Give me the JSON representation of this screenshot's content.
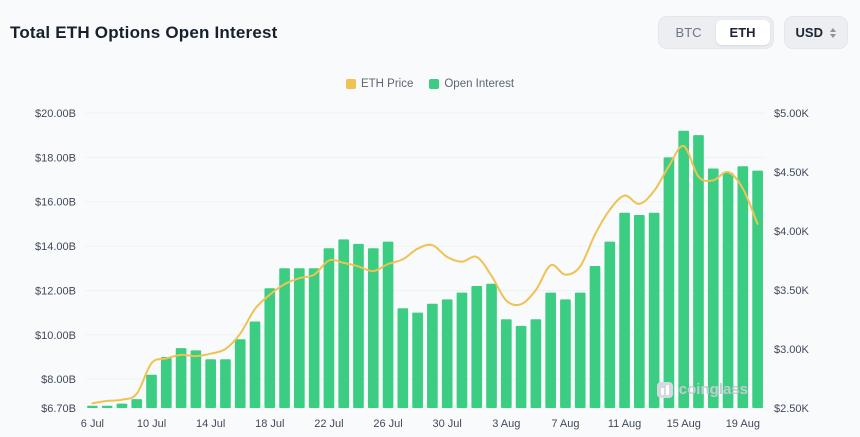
{
  "header": {
    "title": "Total ETH Options Open Interest",
    "asset_toggle": {
      "options": [
        "BTC",
        "ETH"
      ],
      "selected": "ETH"
    },
    "currency_selector": {
      "value": "USD"
    }
  },
  "legend": [
    {
      "label": "ETH Price",
      "color": "#EFC254"
    },
    {
      "label": "Open Interest",
      "color": "#3BCD81"
    }
  ],
  "watermark": "coinglass",
  "chart_data": {
    "type": "bar",
    "title": "Total ETH Options Open Interest",
    "categories": [
      "6 Jul",
      "7 Jul",
      "8 Jul",
      "9 Jul",
      "10 Jul",
      "11 Jul",
      "12 Jul",
      "13 Jul",
      "14 Jul",
      "15 Jul",
      "16 Jul",
      "17 Jul",
      "18 Jul",
      "19 Jul",
      "20 Jul",
      "21 Jul",
      "22 Jul",
      "23 Jul",
      "24 Jul",
      "25 Jul",
      "26 Jul",
      "27 Jul",
      "28 Jul",
      "29 Jul",
      "30 Jul",
      "31 Jul",
      "1 Aug",
      "2 Aug",
      "3 Aug",
      "4 Aug",
      "5 Aug",
      "6 Aug",
      "7 Aug",
      "8 Aug",
      "9 Aug",
      "10 Aug",
      "11 Aug",
      "12 Aug",
      "13 Aug",
      "14 Aug",
      "15 Aug",
      "16 Aug",
      "17 Aug",
      "18 Aug",
      "19 Aug",
      "20 Aug"
    ],
    "series": [
      {
        "name": "Open Interest",
        "type": "bar",
        "axis": "left",
        "unit": "USD billions",
        "color": "#3BCD81",
        "values": [
          6.8,
          6.8,
          6.9,
          7.1,
          8.2,
          9.0,
          9.4,
          9.3,
          8.9,
          8.9,
          9.8,
          10.6,
          12.1,
          13.0,
          13.0,
          13.0,
          13.9,
          14.3,
          14.1,
          13.9,
          14.2,
          11.2,
          11.0,
          11.4,
          11.6,
          11.9,
          12.2,
          12.3,
          10.7,
          10.4,
          10.7,
          11.9,
          11.6,
          11.9,
          13.1,
          14.2,
          15.5,
          15.4,
          15.5,
          18.0,
          19.2,
          19.0,
          17.5,
          17.3,
          17.6,
          17.4
        ]
      },
      {
        "name": "ETH Price",
        "type": "line",
        "axis": "right",
        "unit": "USD thousands",
        "color": "#EFC254",
        "values": [
          2.54,
          2.56,
          2.57,
          2.62,
          2.88,
          2.92,
          2.95,
          2.94,
          2.96,
          3.0,
          3.13,
          3.34,
          3.46,
          3.55,
          3.6,
          3.63,
          3.75,
          3.73,
          3.7,
          3.66,
          3.72,
          3.76,
          3.85,
          3.88,
          3.78,
          3.74,
          3.78,
          3.62,
          3.41,
          3.38,
          3.5,
          3.71,
          3.63,
          3.7,
          3.97,
          4.18,
          4.3,
          4.23,
          4.34,
          4.55,
          4.72,
          4.46,
          4.43,
          4.5,
          4.36,
          4.06
        ]
      }
    ],
    "left_axis": {
      "range": [
        6.7,
        20.0
      ],
      "ticks": [
        6.7,
        8,
        10,
        12,
        14,
        16,
        18,
        20
      ],
      "labels": [
        "$6.70B",
        "$8.00B",
        "$10.00B",
        "$12.00B",
        "$14.00B",
        "$16.00B",
        "$18.00B",
        "$20.00B"
      ]
    },
    "right_axis": {
      "range": [
        2.5,
        5.0
      ],
      "ticks": [
        2.5,
        3.0,
        3.5,
        4.0,
        4.5,
        5.0
      ],
      "labels": [
        "$2.50K",
        "$3.00K",
        "$3.50K",
        "$4.00K",
        "$4.50K",
        "$5.00K"
      ]
    },
    "x_ticks": [
      "6 Jul",
      "10 Jul",
      "14 Jul",
      "18 Jul",
      "22 Jul",
      "26 Jul",
      "30 Jul",
      "3 Aug",
      "7 Aug",
      "11 Aug",
      "15 Aug",
      "19 Aug"
    ],
    "grid": false,
    "legend_position": "top-center"
  }
}
